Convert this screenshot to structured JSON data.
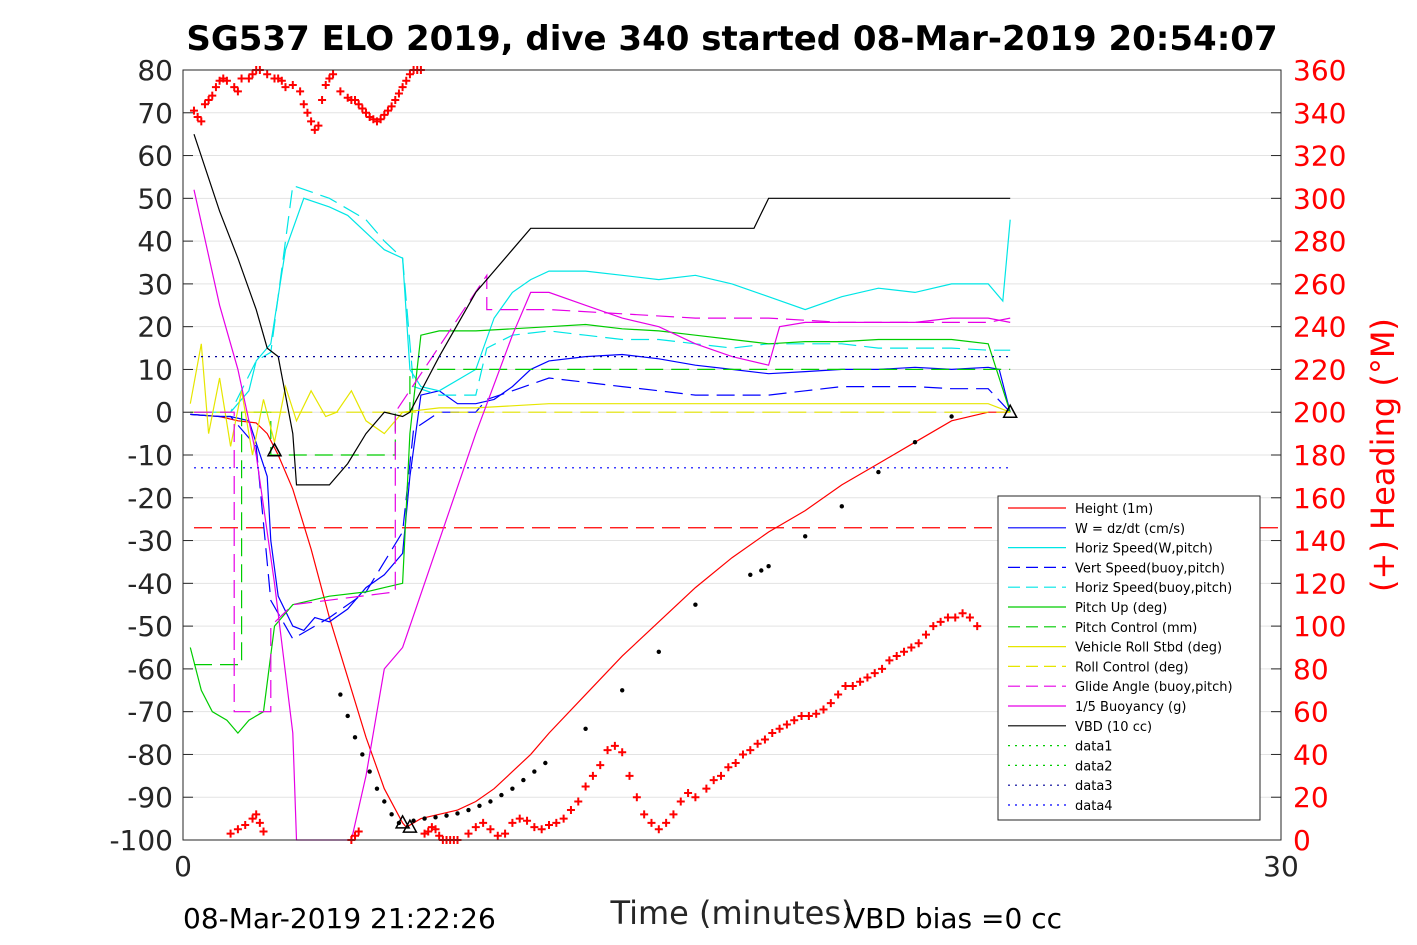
{
  "chart_data": {
    "type": "line",
    "title": "SG537 ELO 2019, dive 340 started 08-Mar-2019 20:54:07",
    "xlabel": "Time (minutes)",
    "ylabel": "",
    "y2label": "(+) Heading (°M)",
    "xlim": [
      0,
      30
    ],
    "ylim": [
      -100,
      80
    ],
    "y2lim": [
      0,
      360
    ],
    "x_ticks": [
      "0",
      "30"
    ],
    "y_ticks": [
      "80",
      "70",
      "60",
      "50",
      "40",
      "30",
      "20",
      "10",
      "0",
      "-10",
      "-20",
      "-30",
      "-40",
      "-50",
      "-60",
      "-70",
      "-80",
      "-90",
      "-100"
    ],
    "y2_ticks": [
      "360",
      "340",
      "320",
      "300",
      "280",
      "260",
      "240",
      "220",
      "200",
      "180",
      "160",
      "140",
      "120",
      "100",
      "80",
      "60",
      "40",
      "20",
      "0"
    ],
    "grid": "horizontal",
    "legend_position": "lower-right",
    "footer_left": "08-Mar-2019 21:22:26",
    "footer_right": "VBD bias =0 cc",
    "colors": {
      "red": "#ff0000",
      "blue": "#0000ff",
      "cyan": "#00e6e6",
      "green": "#00cc00",
      "yellow": "#e6e600",
      "magenta": "#e600e6",
      "black": "#000000"
    },
    "series": [
      {
        "name": "Height (1m)",
        "color": "#ff0000",
        "dash": "",
        "x": [
          0.2,
          1,
          1.5,
          2,
          2.3,
          2.6,
          3,
          3.5,
          4,
          4.5,
          5,
          5.5,
          6,
          6.1,
          6.5,
          7,
          7.5,
          8,
          8.5,
          9,
          9.5,
          10,
          11,
          12,
          13,
          14,
          15,
          16,
          17,
          18,
          19,
          20,
          21,
          22,
          22.6
        ],
        "y": [
          -0.5,
          -1,
          -2,
          -2.5,
          -5,
          -10,
          -18,
          -32,
          -48,
          -62,
          -76,
          -88,
          -96,
          -97,
          -95,
          -94,
          -93,
          -91,
          -88,
          -84,
          -80,
          -75,
          -66,
          -57,
          -49,
          -41,
          -34,
          -28,
          -23,
          -17,
          -12,
          -7,
          -2,
          0,
          0
        ]
      },
      {
        "name": "W = dz/dt (cm/s)",
        "color": "#0000ff",
        "dash": "",
        "x": [
          0.2,
          1,
          1.3,
          1.8,
          2.3,
          2.4,
          2.6,
          3,
          3.3,
          3.6,
          4,
          4.5,
          5,
          5.5,
          6,
          6.2,
          6.5,
          7,
          7.5,
          8,
          8.5,
          9,
          9.5,
          10,
          11,
          12,
          13,
          14,
          15,
          16,
          17,
          18,
          19,
          20,
          21,
          22,
          22.3,
          22.6
        ],
        "y": [
          -0.5,
          -1,
          -1,
          -2,
          -15,
          -30,
          -43,
          -50,
          -51,
          -48,
          -49,
          -46,
          -41,
          -38,
          -33,
          -15,
          4,
          5,
          2,
          2,
          3,
          6,
          10,
          12,
          13,
          13.5,
          12.5,
          11,
          10,
          9,
          9.5,
          10,
          10,
          10.5,
          10,
          10.5,
          10,
          0
        ]
      },
      {
        "name": "Horiz Speed(W,pitch)",
        "color": "#00e6e6",
        "dash": "",
        "x": [
          0.2,
          1,
          1.3,
          1.8,
          2.0,
          2.4,
          2.8,
          3.3,
          4,
          4.5,
          5,
          5.5,
          6,
          6.2,
          6.5,
          7,
          8,
          8.5,
          9,
          9.5,
          10,
          11,
          12,
          13,
          14,
          15,
          16,
          17,
          18,
          19,
          20,
          21,
          22,
          22.4,
          22.6
        ],
        "y": [
          0,
          0,
          0,
          5,
          12,
          16,
          38,
          50,
          48,
          46,
          42,
          38,
          36,
          10,
          6,
          5,
          10,
          22,
          28,
          31,
          33,
          33,
          32,
          31,
          32,
          30,
          27,
          24,
          27,
          29,
          28,
          30,
          30,
          26,
          45
        ]
      },
      {
        "name": "Vert Speed(buoy,pitch)",
        "color": "#0000ff",
        "dash": "18,8",
        "x": [
          0.2,
          1,
          1.3,
          2.0,
          2.4,
          3.0,
          4,
          5,
          5.5,
          6,
          6.3,
          7,
          8,
          8.3,
          9,
          10,
          11,
          12,
          13,
          14,
          15,
          16,
          17,
          18,
          19,
          20,
          21,
          22,
          22.6
        ],
        "y": [
          -0.5,
          -1,
          -1,
          -8,
          -44,
          -53,
          -48,
          -42,
          -35,
          -28,
          -4,
          0,
          0,
          3,
          5,
          8,
          7,
          6,
          5,
          4,
          4,
          4,
          5,
          6,
          6,
          6,
          5.5,
          5.5,
          0
        ]
      },
      {
        "name": "Horiz Speed(buoy,pitch)",
        "color": "#00e6e6",
        "dash": "18,8",
        "x": [
          0.2,
          1,
          1.3,
          2.0,
          2.4,
          3.0,
          4,
          5,
          5.5,
          6,
          6.3,
          7,
          8,
          8.3,
          9,
          10,
          11,
          12,
          13,
          14,
          15,
          16,
          17,
          18,
          19,
          20,
          21,
          22,
          22.6
        ],
        "y": [
          0,
          0,
          0,
          12,
          14,
          53,
          50,
          45,
          40,
          36,
          6,
          4,
          4,
          15,
          18,
          19,
          18,
          17,
          17,
          16,
          15,
          16,
          16,
          16,
          15,
          15,
          15,
          14.5,
          14.5
        ]
      },
      {
        "name": "Pitch Up (deg)",
        "color": "#00cc00",
        "dash": "",
        "x": [
          0.2,
          0.5,
          0.8,
          1.2,
          1.5,
          1.8,
          2.2,
          2.5,
          3,
          4,
          5,
          5.5,
          6,
          6.2,
          6.5,
          7,
          8,
          9,
          10,
          11,
          12,
          13,
          14,
          15,
          16,
          17,
          18,
          19,
          20,
          21,
          22,
          22.6
        ],
        "y": [
          -55,
          -65,
          -70,
          -72,
          -75,
          -72,
          -70,
          -50,
          -45,
          -43,
          -42,
          -41,
          -40,
          -5,
          18,
          19,
          19,
          19.5,
          20,
          20.5,
          19.5,
          19,
          18,
          17,
          16,
          16.5,
          16.5,
          17,
          17,
          17,
          16,
          0
        ]
      },
      {
        "name": "Pitch Control (mm)",
        "color": "#00cc00",
        "dash": "18,8",
        "x": [
          0.3,
          1.6,
          1.6,
          2.4,
          2.4,
          5.8,
          5.8,
          6.2,
          6.2,
          22.6
        ],
        "y": [
          -59,
          -59,
          0,
          0,
          -10,
          -10,
          0,
          0,
          10,
          10
        ]
      },
      {
        "name": "Vehicle Roll Stbd (deg)",
        "color": "#e6e600",
        "dash": "",
        "x": [
          0.2,
          0.5,
          0.7,
          1.0,
          1.3,
          1.6,
          1.9,
          2.2,
          2.5,
          2.8,
          3.1,
          3.5,
          3.9,
          4.2,
          4.6,
          5.0,
          5.5,
          6,
          7,
          8,
          9,
          10,
          12,
          14,
          16,
          18,
          20,
          22,
          22.6
        ],
        "y": [
          2,
          16,
          -5,
          8,
          -8,
          5,
          -10,
          3,
          -7,
          6,
          -2,
          5,
          -1,
          0,
          5,
          -2,
          -5,
          0,
          1,
          1,
          1.5,
          2,
          2,
          2,
          2,
          2,
          2,
          2,
          0
        ]
      },
      {
        "name": "Roll Control (deg)",
        "color": "#e6e600",
        "dash": "18,8",
        "x": [
          0.2,
          22.6
        ],
        "y": [
          0,
          0
        ]
      },
      {
        "name": "Glide Angle (buoy,pitch)",
        "color": "#e600e6",
        "dash": "18,8",
        "x": [
          0.3,
          1.4,
          1.4,
          2.4,
          2.4,
          3.0,
          5.8,
          5.8,
          8.3,
          8.3,
          10,
          12,
          14,
          16,
          18,
          20,
          22,
          22.6
        ],
        "y": [
          0,
          0,
          -70,
          -70,
          -50,
          -45,
          -42,
          0,
          32,
          24,
          24,
          23,
          22,
          22,
          21,
          21,
          21,
          22
        ]
      },
      {
        "name": "1/5 Buoyancy (g)",
        "color": "#e600e6",
        "dash": "",
        "x": [
          0.3,
          1,
          1.5,
          2,
          2.5,
          3.0,
          3.1,
          3.2,
          4.5,
          4.6,
          5,
          5.5,
          6,
          7,
          8,
          9,
          9.5,
          10,
          11,
          12,
          13,
          14,
          15,
          16,
          16.3,
          17,
          18,
          19,
          20,
          21,
          22,
          22.6
        ],
        "y": [
          52,
          25,
          10,
          -10,
          -40,
          -75,
          -100,
          -100,
          -100,
          -100,
          -85,
          -60,
          -55,
          -30,
          -5,
          18,
          28,
          28,
          25,
          22,
          20,
          16,
          13,
          11,
          20,
          21,
          21,
          21,
          21,
          22,
          22,
          21
        ]
      },
      {
        "name": "VBD (10 cc)",
        "color": "#000000",
        "dash": "",
        "x": [
          0.3,
          1,
          1.5,
          2,
          2.3,
          2.6,
          3.0,
          3.1,
          4.0,
          4.5,
          5,
          5.5,
          6,
          6.2,
          7,
          8,
          9,
          9.5,
          10,
          11,
          12,
          13,
          14,
          15,
          15.6,
          16,
          17,
          18,
          19,
          20,
          21,
          22,
          22.6
        ],
        "y": [
          65,
          47,
          36,
          24,
          15,
          13,
          -5,
          -17,
          -17,
          -12,
          -5,
          0,
          -1,
          0,
          13,
          28,
          38,
          43,
          43,
          43,
          43,
          43,
          43,
          43,
          43,
          50,
          50,
          50,
          50,
          50,
          50,
          50,
          50
        ]
      },
      {
        "name": "data1",
        "color": "#00cc00",
        "dash": "2,5",
        "x": [],
        "y": []
      },
      {
        "name": "data2",
        "color": "#00cc00",
        "dash": "2,5",
        "x": [],
        "y": []
      },
      {
        "name": "data3",
        "color": "#000099",
        "dash": "2,5",
        "x": [
          0.3,
          22.6
        ],
        "y": [
          13,
          13
        ]
      },
      {
        "name": "data4",
        "color": "#0000ff",
        "dash": "2,5",
        "x": [
          0.3,
          22.6
        ],
        "y": [
          -13,
          -13
        ]
      }
    ],
    "extra_lines": [
      {
        "color": "#ff0000",
        "dash": "18,8",
        "x": [
          0.3,
          30
        ],
        "y": [
          -27,
          -27
        ]
      }
    ],
    "markers": {
      "height_dots": {
        "x": [
          4.3,
          4.5,
          4.7,
          4.9,
          5.1,
          5.3,
          5.5,
          5.7,
          5.9,
          6.3,
          6.6,
          6.9,
          7.2,
          7.5,
          7.8,
          8.1,
          8.4,
          8.7,
          9,
          9.3,
          9.6,
          9.9,
          11,
          12,
          13,
          14,
          15.5,
          15.8,
          16,
          17,
          18,
          19,
          20,
          21
        ],
        "y": [
          -66,
          -71,
          -76,
          -80,
          -84,
          -88,
          -91,
          -94,
          -96,
          -95.5,
          -95,
          -94.7,
          -94.3,
          -93.8,
          -93,
          -92,
          -91,
          -89.5,
          -88,
          -86,
          -84,
          -82,
          -74,
          -65,
          -56,
          -45,
          -38,
          -37,
          -36,
          -29,
          -22,
          -14,
          -7,
          -1
        ]
      },
      "triangles": {
        "x": [
          2.5,
          6.0,
          6.2,
          22.6
        ],
        "y": [
          -9,
          -96,
          -97,
          0
        ]
      }
    },
    "heading": {
      "name": "(+) Heading (°M)",
      "color": "#ff0000",
      "t": [
        0.3,
        0.4,
        0.5,
        0.6,
        0.7,
        0.8,
        0.9,
        1.0,
        1.1,
        1.2,
        1.4,
        1.5,
        1.6,
        1.8,
        1.9,
        2.0,
        2.1,
        2.3,
        2.5,
        2.6,
        2.7,
        2.8,
        3.0,
        3.2,
        3.3,
        3.4,
        3.5,
        3.6,
        3.7,
        3.8,
        3.9,
        4.0,
        4.1,
        4.3,
        4.5,
        4.6,
        4.7,
        4.8,
        4.9,
        5.0,
        5.1,
        5.2,
        5.3,
        5.4,
        5.5,
        5.6,
        5.7,
        5.8,
        5.9,
        6.0,
        6.1,
        6.2,
        6.3,
        6.4,
        6.5,
        6.6,
        6.7,
        6.8,
        6.9,
        7.0,
        7.1,
        7.2,
        7.3,
        7.4,
        7.5,
        1.3,
        1.5,
        1.7,
        1.9,
        2.0,
        2.1,
        2.2,
        4.6,
        4.7,
        4.8,
        7.5,
        7.8,
        8.0,
        8.2,
        8.4,
        8.6,
        8.8,
        9.0,
        9.2,
        9.4,
        9.6,
        9.8,
        10.0,
        10.2,
        10.4,
        10.6,
        10.8,
        11.0,
        11.2,
        11.4,
        11.6,
        11.8,
        12.0,
        12.2,
        12.4,
        12.6,
        12.8,
        13.0,
        13.2,
        13.4,
        13.6,
        13.8,
        14.0,
        14.3,
        14.5,
        14.7,
        14.9,
        15.1,
        15.3,
        15.5,
        15.7,
        15.9,
        16.1,
        16.3,
        16.5,
        16.7,
        16.9,
        17.1,
        17.3,
        17.5,
        17.7,
        17.9,
        18.1,
        18.3,
        18.5,
        18.7,
        18.9,
        19.1,
        19.3,
        19.5,
        19.7,
        19.9,
        20.1,
        20.3,
        20.5,
        20.7,
        20.9,
        21.1,
        21.3,
        21.5,
        21.7,
        21.9,
        22.1,
        22.3
      ],
      "deg": [
        341,
        338,
        336,
        344,
        346,
        348,
        352,
        355,
        356,
        355,
        352,
        350,
        356,
        356,
        358,
        360,
        360,
        358,
        356,
        356,
        355,
        352,
        353,
        350,
        344,
        340,
        336,
        332,
        334,
        346,
        353,
        356,
        358,
        350,
        347,
        346,
        346,
        344,
        342,
        340,
        338,
        337,
        336,
        337,
        339,
        341,
        343,
        346,
        349,
        352,
        355,
        358,
        360,
        360,
        360,
        3,
        4,
        6,
        5,
        2,
        0,
        0,
        0,
        0,
        0,
        3,
        5,
        7,
        10,
        12,
        8,
        4,
        0,
        2,
        4,
        0,
        3,
        6,
        8,
        5,
        2,
        3,
        8,
        10,
        9,
        6,
        5,
        7,
        8,
        10,
        14,
        18,
        25,
        30,
        35,
        42,
        44,
        41,
        30,
        20,
        12,
        8,
        5,
        8,
        12,
        18,
        22,
        20,
        24,
        28,
        30,
        34,
        36,
        40,
        42,
        45,
        47,
        50,
        52,
        54,
        56,
        58,
        58,
        59,
        61,
        64,
        68,
        72,
        72,
        74,
        76,
        78,
        80,
        84,
        86,
        88,
        90,
        92,
        96,
        100,
        102,
        104,
        104,
        106,
        104,
        100
      ]
    }
  }
}
